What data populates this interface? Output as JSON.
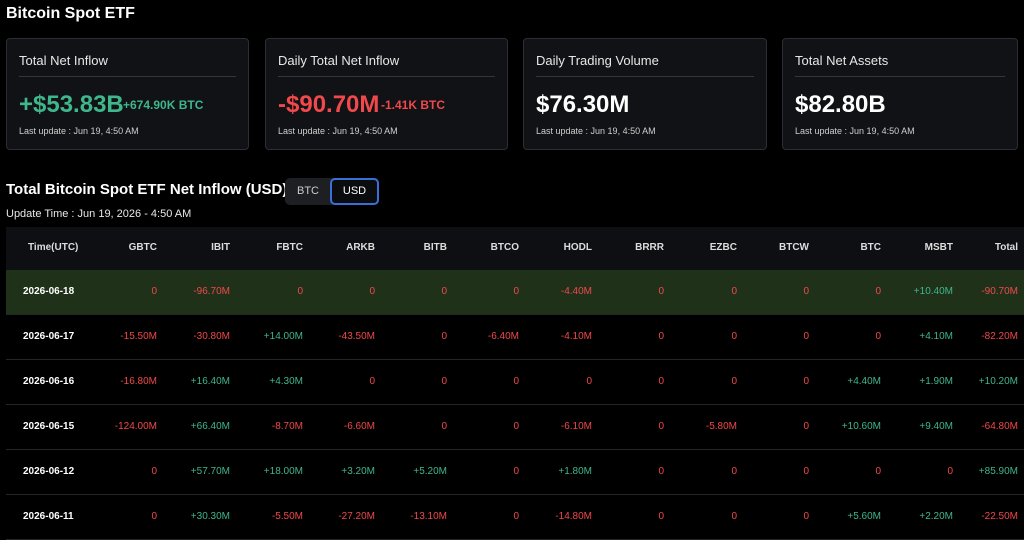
{
  "header": {
    "title": "Bitcoin Spot ETF"
  },
  "cards": [
    {
      "label": "Total Net Inflow",
      "value": "+$53.83B",
      "sub": "+674.90K BTC",
      "update": "Last update : Jun 19, 4:50 AM"
    },
    {
      "label": "Daily Total Net Inflow",
      "value": "-$90.70M",
      "sub": "-1.41K BTC",
      "update": "Last update : Jun 19, 4:50 AM"
    },
    {
      "label": "Daily Trading Volume",
      "value": "$76.30M",
      "update": "Last update : Jun 19, 4:50 AM"
    },
    {
      "label": "Total Net Assets",
      "value": "$82.80B",
      "update": "Last update : Jun 19, 4:50 AM"
    }
  ],
  "section": {
    "title": "Total Bitcoin Spot ETF Net Inflow (USD)",
    "toggle": [
      "BTC",
      "USD"
    ],
    "update_time": "Update Time : Jun 19, 2026 - 4:50 AM"
  },
  "table": {
    "columns": [
      "Time(UTC)",
      "GBTC",
      "IBIT",
      "FBTC",
      "ARKB",
      "BITB",
      "BTCO",
      "HODL",
      "BRRR",
      "EZBC",
      "BTCW",
      "BTC",
      "MSBT",
      "Total"
    ],
    "rows": [
      {
        "date": "2026-06-18",
        "values": [
          "0",
          "-96.70M",
          "0",
          "0",
          "0",
          "0",
          "-4.40M",
          "0",
          "0",
          "0",
          "0",
          "+10.40M",
          "-90.70M"
        ]
      },
      {
        "date": "2026-06-17",
        "values": [
          "-15.50M",
          "-30.80M",
          "+14.00M",
          "-43.50M",
          "0",
          "-6.40M",
          "-4.10M",
          "0",
          "0",
          "0",
          "0",
          "+4.10M",
          "-82.20M"
        ]
      },
      {
        "date": "2026-06-16",
        "values": [
          "-16.80M",
          "+16.40M",
          "+4.30M",
          "0",
          "0",
          "0",
          "0",
          "0",
          "0",
          "0",
          "+4.40M",
          "+1.90M",
          "+10.20M"
        ]
      },
      {
        "date": "2026-06-15",
        "values": [
          "-124.00M",
          "+66.40M",
          "-8.70M",
          "-6.60M",
          "0",
          "0",
          "-6.10M",
          "0",
          "-5.80M",
          "0",
          "+10.60M",
          "+9.40M",
          "-64.80M"
        ]
      },
      {
        "date": "2026-06-12",
        "values": [
          "0",
          "+57.70M",
          "+18.00M",
          "+3.20M",
          "+5.20M",
          "0",
          "+1.80M",
          "0",
          "0",
          "0",
          "0",
          "0",
          "+85.90M"
        ]
      },
      {
        "date": "2026-06-11",
        "values": [
          "0",
          "+30.30M",
          "-5.50M",
          "-27.20M",
          "-13.10M",
          "0",
          "-14.80M",
          "0",
          "0",
          "0",
          "+5.60M",
          "+2.20M",
          "-22.50M"
        ]
      }
    ]
  }
}
